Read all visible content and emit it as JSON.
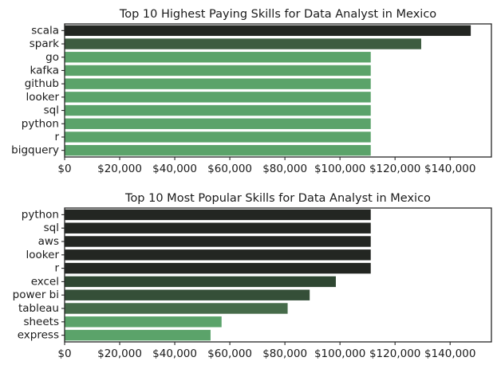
{
  "chart_data": [
    {
      "type": "bar",
      "orientation": "horizontal",
      "title": "Top 10 Highest Paying Skills for Data Analyst in Mexico",
      "xlabel": "",
      "ylabel": "",
      "categories": [
        "scala",
        "spark",
        "go",
        "kafka",
        "github",
        "looker",
        "sql",
        "python",
        "r",
        "bigquery"
      ],
      "values": [
        147500,
        129500,
        111175,
        111175,
        111175,
        111175,
        111175,
        111175,
        111175,
        111175
      ],
      "colors": [
        "#232622",
        "#3d5c40",
        "#5ba36a",
        "#5ba36a",
        "#5ba36a",
        "#5ba36a",
        "#5ba36a",
        "#5ba36a",
        "#5ba36a",
        "#5ba36a"
      ],
      "xlim": [
        0,
        155000
      ],
      "xticks": [
        0,
        20000,
        40000,
        60000,
        80000,
        100000,
        120000,
        140000
      ],
      "xtick_labels": [
        "$0",
        "$20,000",
        "$40,000",
        "$60,000",
        "$80,000",
        "$100,000",
        "$120,000",
        "$140,000"
      ],
      "grid": false
    },
    {
      "type": "bar",
      "orientation": "horizontal",
      "title": "Top 10 Most Popular Skills for Data Analyst in Mexico",
      "xlabel": "",
      "ylabel": "",
      "categories": [
        "python",
        "sql",
        "aws",
        "looker",
        "r",
        "excel",
        "power bi",
        "tableau",
        "sheets",
        "express"
      ],
      "values": [
        111175,
        111175,
        111175,
        111175,
        111175,
        98500,
        89000,
        81000,
        57000,
        53000
      ],
      "colors": [
        "#232622",
        "#232622",
        "#232622",
        "#232622",
        "#232622",
        "#2f4732",
        "#354f38",
        "#466b4a",
        "#5ba36a",
        "#5ba36a"
      ],
      "xlim": [
        0,
        155000
      ],
      "xticks": [
        0,
        20000,
        40000,
        60000,
        80000,
        100000,
        120000,
        140000
      ],
      "xtick_labels": [
        "$0",
        "$20,000",
        "$40,000",
        "$60,000",
        "$80,000",
        "$100,000",
        "$120,000",
        "$140,000"
      ],
      "grid": false
    }
  ]
}
